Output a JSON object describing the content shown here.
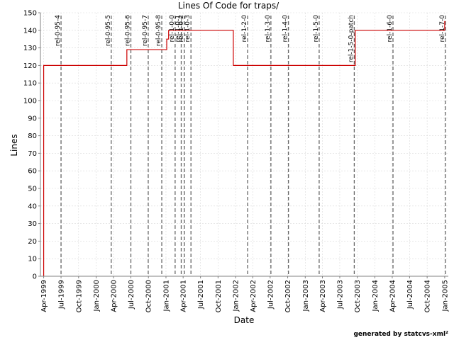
{
  "chart_data": {
    "type": "line",
    "title": "Lines Of Code for traps/",
    "xlabel": "Date",
    "ylabel": "Lines",
    "ylim": [
      0,
      150
    ],
    "y_ticks": [
      0,
      10,
      20,
      30,
      40,
      50,
      60,
      70,
      80,
      90,
      100,
      110,
      120,
      130,
      140,
      150
    ],
    "x_range": [
      "1999-03-15",
      "2005-01-20"
    ],
    "x_ticks": [
      {
        "date": "1999-04-01",
        "label": "Apr-1999"
      },
      {
        "date": "1999-07-01",
        "label": "Jul-1999"
      },
      {
        "date": "1999-10-01",
        "label": "Oct-1999"
      },
      {
        "date": "2000-01-01",
        "label": "Jan-2000"
      },
      {
        "date": "2000-04-01",
        "label": "Apr-2000"
      },
      {
        "date": "2000-07-01",
        "label": "Jul-2000"
      },
      {
        "date": "2000-10-01",
        "label": "Oct-2000"
      },
      {
        "date": "2001-01-01",
        "label": "Jan-2001"
      },
      {
        "date": "2001-04-01",
        "label": "Apr-2001"
      },
      {
        "date": "2001-07-01",
        "label": "Jul-2001"
      },
      {
        "date": "2001-10-01",
        "label": "Oct-2001"
      },
      {
        "date": "2002-01-01",
        "label": "Jan-2002"
      },
      {
        "date": "2002-04-01",
        "label": "Apr-2002"
      },
      {
        "date": "2002-07-01",
        "label": "Jul-2002"
      },
      {
        "date": "2002-10-01",
        "label": "Oct-2002"
      },
      {
        "date": "2003-01-01",
        "label": "Jan-2003"
      },
      {
        "date": "2003-04-01",
        "label": "Apr-2003"
      },
      {
        "date": "2003-07-01",
        "label": "Jul-2003"
      },
      {
        "date": "2003-10-01",
        "label": "Oct-2003"
      },
      {
        "date": "2004-01-01",
        "label": "Jan-2004"
      },
      {
        "date": "2004-04-01",
        "label": "Apr-2004"
      },
      {
        "date": "2004-07-01",
        "label": "Jul-2004"
      },
      {
        "date": "2004-10-01",
        "label": "Oct-2004"
      },
      {
        "date": "2005-01-01",
        "label": "Jan-2005"
      }
    ],
    "grid": true,
    "series": [
      {
        "color": "#cc0000",
        "step": true,
        "points": [
          {
            "date": "1999-04-01",
            "value": 0
          },
          {
            "date": "1999-04-01",
            "value": 120
          },
          {
            "date": "2000-06-10",
            "value": 129
          },
          {
            "date": "2001-01-05",
            "value": 135
          },
          {
            "date": "2001-01-15",
            "value": 140
          },
          {
            "date": "2001-12-20",
            "value": 120
          },
          {
            "date": "2003-09-20",
            "value": 140
          },
          {
            "date": "2005-01-01",
            "value": 145
          },
          {
            "date": "2005-01-05",
            "value": 145
          }
        ]
      }
    ],
    "markers": [
      {
        "date": "1999-07-01",
        "label": "rel-0-95-4"
      },
      {
        "date": "2000-03-20",
        "label": "rel-0-95-5"
      },
      {
        "date": "2000-07-01",
        "label": "rel-0-95-6"
      },
      {
        "date": "2000-09-30",
        "label": "rel-0-95-7"
      },
      {
        "date": "2000-12-10",
        "label": "rel-0-95-8"
      },
      {
        "date": "2001-02-18",
        "label": "rel-1-0-0"
      },
      {
        "date": "2001-03-22",
        "label": "rel-1-0-1"
      },
      {
        "date": "2001-04-08",
        "label": "rel-1-0-2"
      },
      {
        "date": "2001-05-12",
        "label": "rel-1-0-3"
      },
      {
        "date": "2002-03-05",
        "label": "rel-1-2-0"
      },
      {
        "date": "2002-07-05",
        "label": "rel-1-3-0"
      },
      {
        "date": "2002-10-05",
        "label": "rel-1-4-0"
      },
      {
        "date": "2003-03-15",
        "label": "rel-1-5-0"
      },
      {
        "date": "2003-09-15",
        "label": "rel-1-5-0-patch"
      },
      {
        "date": "2004-04-05",
        "label": "rel-1-6-0"
      },
      {
        "date": "2005-01-05",
        "label": "rel-1-7-0"
      }
    ]
  },
  "footer": {
    "credit": "generated by statcvs-xml²"
  }
}
